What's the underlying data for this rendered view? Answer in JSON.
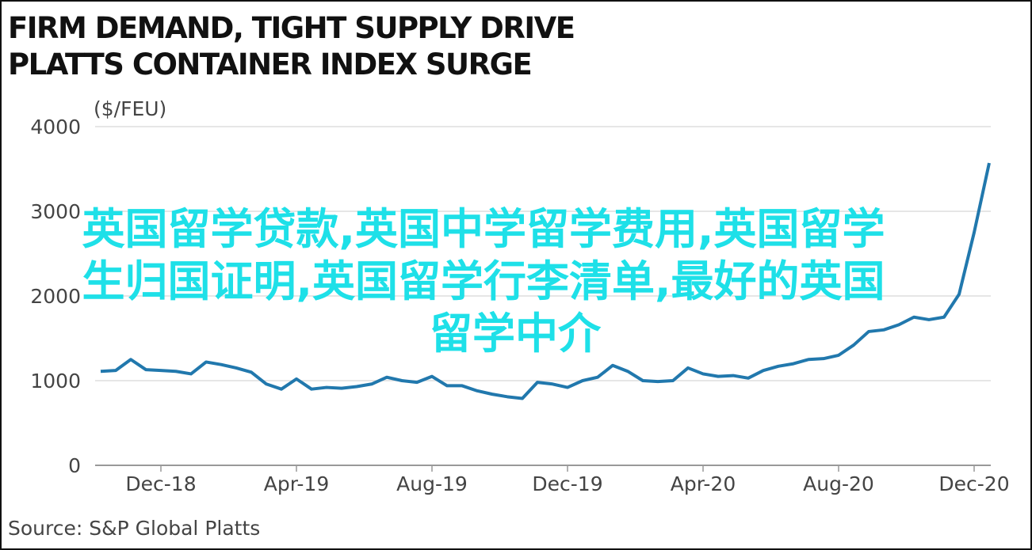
{
  "chart_data": {
    "type": "line",
    "title": [
      "FIRM DEMAND, TIGHT SUPPLY DRIVE",
      "PLATTS CONTAINER INDEX SURGE"
    ],
    "y_label": "($/FEU)",
    "source": "Source: S&P Global Platts",
    "annotation": [
      "英国留学贷款,英国中学留学费用,英国留学",
      "生归国证明,英国留学行李清单,最好的英国",
      "留学中介"
    ],
    "categories": [
      null,
      null,
      null,
      null,
      "Dec-18",
      null,
      null,
      null,
      null,
      null,
      null,
      null,
      null,
      "Apr-19",
      null,
      null,
      null,
      null,
      null,
      null,
      null,
      null,
      "Aug-19",
      null,
      null,
      null,
      null,
      null,
      null,
      null,
      null,
      "Dec-19",
      null,
      null,
      null,
      null,
      null,
      null,
      null,
      null,
      "Apr-20",
      null,
      null,
      null,
      null,
      null,
      null,
      null,
      null,
      "Aug-20",
      null,
      null,
      null,
      null,
      null,
      null,
      null,
      null,
      "Dec-20",
      null
    ],
    "series": [
      {
        "name": "Platts Container Index",
        "color": "#2178ad",
        "values": [
          1110,
          1120,
          1250,
          1130,
          1120,
          1110,
          1080,
          1220,
          1190,
          1150,
          1100,
          960,
          900,
          1020,
          900,
          920,
          910,
          930,
          960,
          1040,
          1000,
          980,
          1050,
          940,
          940,
          880,
          840,
          810,
          790,
          980,
          960,
          920,
          1000,
          1040,
          1180,
          1110,
          1000,
          990,
          1000,
          1150,
          1080,
          1050,
          1060,
          1030,
          1120,
          1170,
          1200,
          1250,
          1260,
          1300,
          1420,
          1580,
          1600,
          1660,
          1750,
          1720,
          1750,
          2020,
          2750,
          3570
        ]
      }
    ],
    "ylim": [
      0,
      4000
    ],
    "yticks": [
      0,
      1000,
      2000,
      3000,
      4000
    ],
    "grid": true
  }
}
